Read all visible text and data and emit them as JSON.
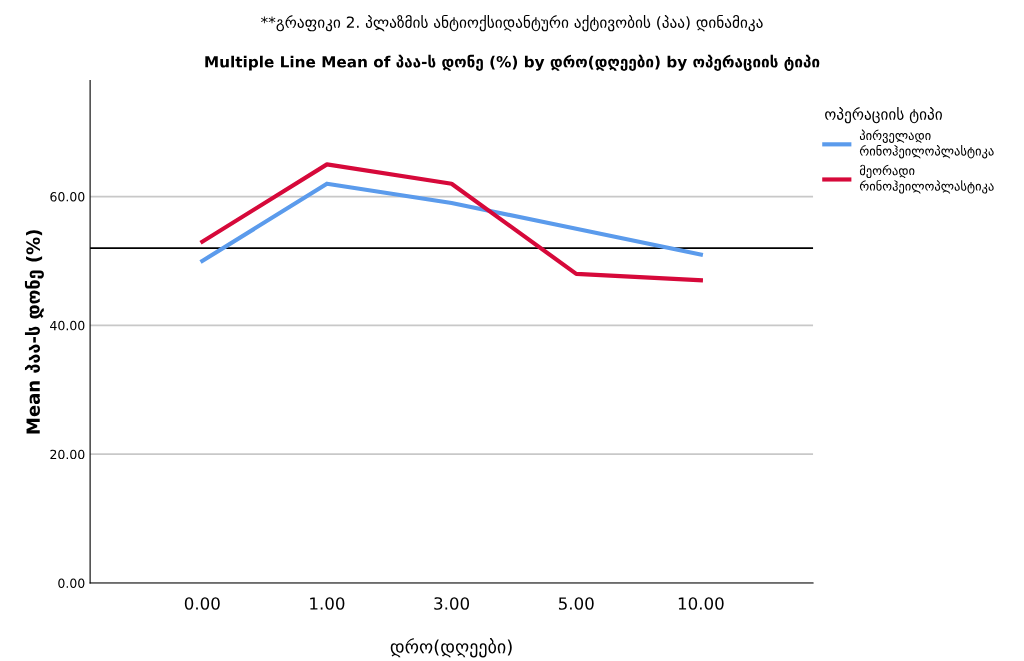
{
  "chart_data": {
    "type": "line",
    "title": "**გრაფიკი 2. პლაზმის ანტიოქსიდანტური აქტივობის (პაა) დინამიკა",
    "subtitle": "Multiple Line Mean of პაა-ს დონე (%) by დრო(დღეები) by ოპერაციის ტიპი",
    "xlabel": "დრო(დღეები)",
    "ylabel": "Mean პაა-ს დონე (%)",
    "legend_title": "ოპერაციის ტიპი",
    "categories": [
      "0.00",
      "1.00",
      "3.00",
      "5.00",
      "10.00"
    ],
    "series": [
      {
        "name": "პირველადი\nრინოჰეილოპლასტიკა",
        "color": "#5b9bec",
        "values": [
          50,
          62,
          59,
          55,
          51
        ]
      },
      {
        "name": "მეორადი\nრინოჰეილოპლასტიკა",
        "color": "#d6093a",
        "values": [
          53,
          65,
          62,
          48,
          47
        ]
      }
    ],
    "ylim": [
      0,
      78
    ],
    "yticks": [
      {
        "value": 0,
        "label": "0.00"
      },
      {
        "value": 20,
        "label": "20.00"
      },
      {
        "value": 40,
        "label": "40.00"
      },
      {
        "value": 60,
        "label": "60.00"
      }
    ],
    "ref_lines": [
      {
        "axis": "y",
        "value": 52,
        "color": "#000000"
      }
    ],
    "grid": "y",
    "legend": "top right",
    "marker": "none",
    "line_style": "solid"
  }
}
